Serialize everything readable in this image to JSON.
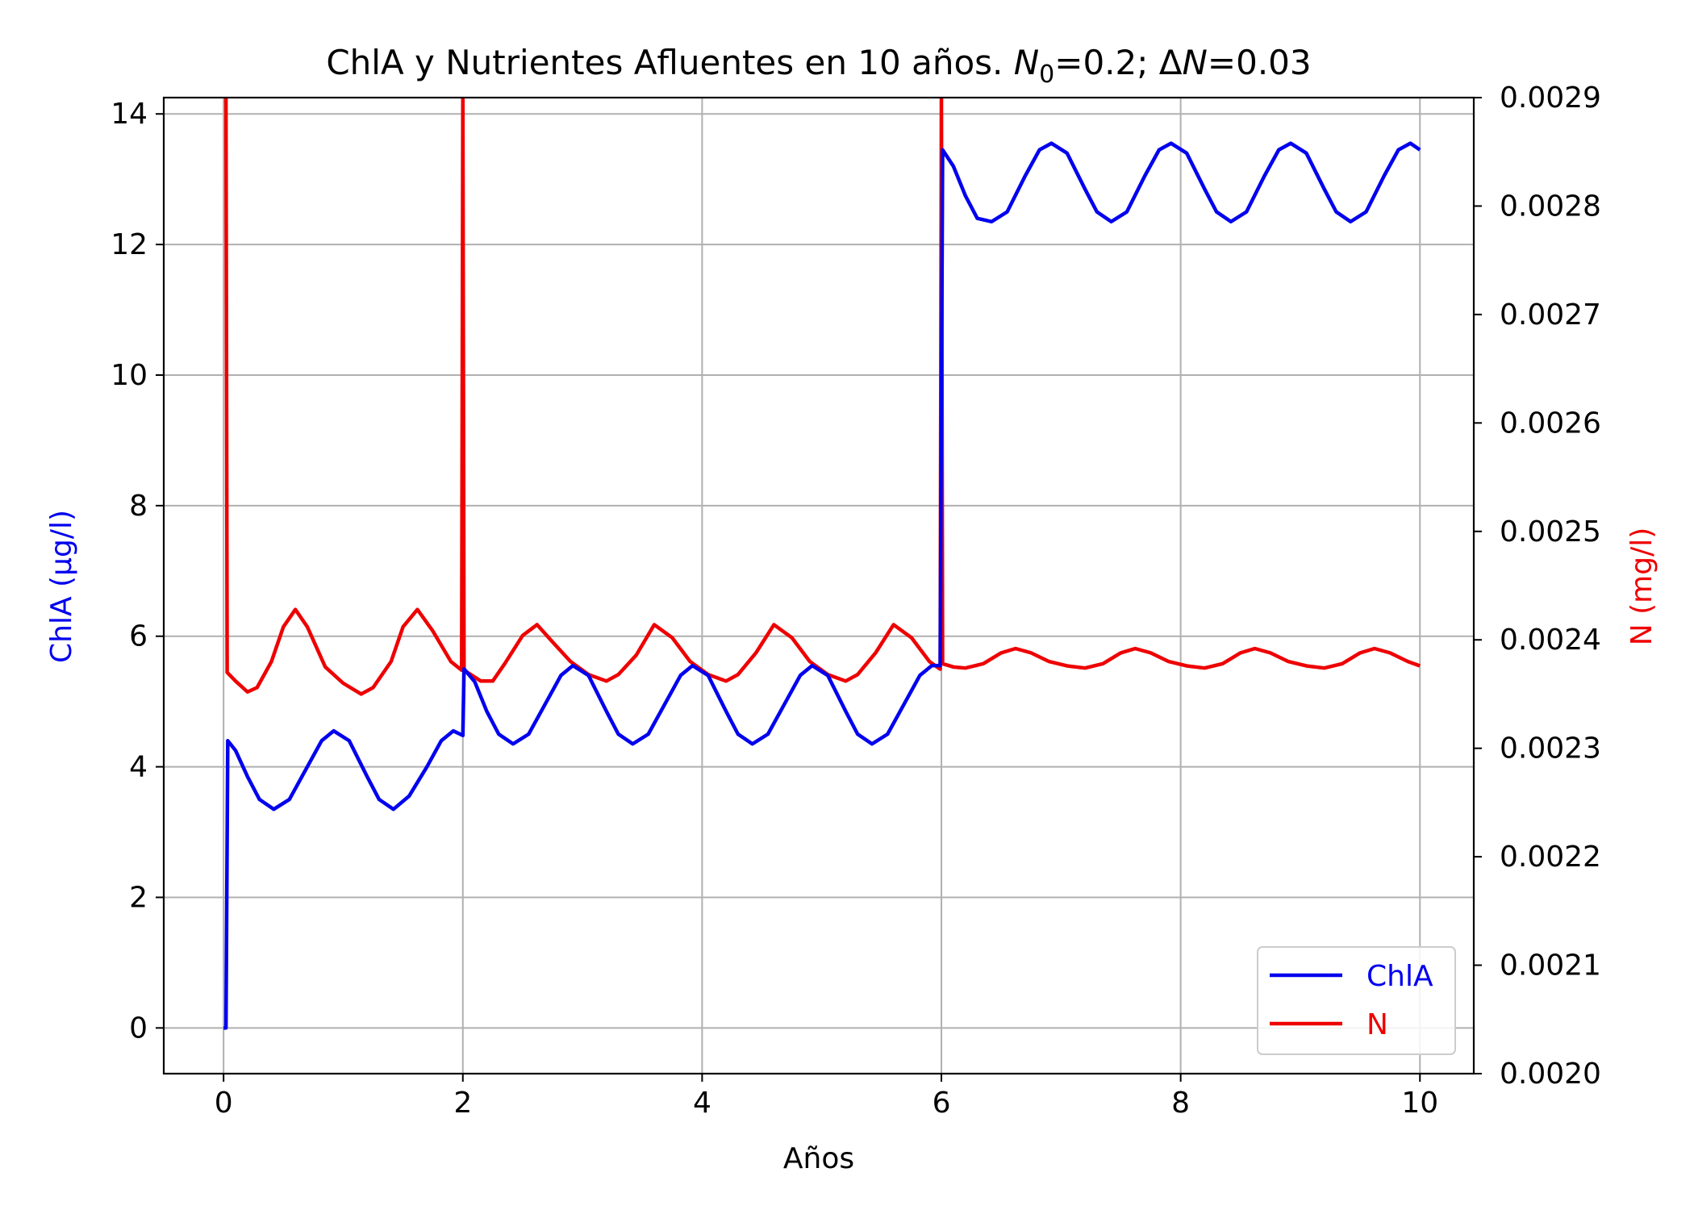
{
  "chart_data": {
    "type": "line",
    "title": {
      "prefix": "ChlA y Nutrientes Afluentes en 10 años. ",
      "n_symbol": "N",
      "n_sub": "0",
      "n_value": "=0.2; Δ",
      "dn_symbol": "N",
      "dn_value": "=0.03"
    },
    "xlabel": "Años",
    "ylabel_left": "ChlA (μg/l)",
    "ylabel_right": "N (mg/l)",
    "xlim": [
      -0.5,
      10.45
    ],
    "ylim_left": [
      -0.7,
      14.25
    ],
    "ylim_right": [
      0.002,
      0.0029
    ],
    "x_ticks": [
      "0",
      "2",
      "4",
      "6",
      "8",
      "10"
    ],
    "y_left_ticks": [
      "0",
      "2",
      "4",
      "6",
      "8",
      "10",
      "12",
      "14"
    ],
    "y_right_ticks": [
      "0.0020",
      "0.0021",
      "0.0022",
      "0.0023",
      "0.0024",
      "0.0025",
      "0.0026",
      "0.0027",
      "0.0028",
      "0.0029"
    ],
    "grid": true,
    "legend_position": "lower-right",
    "series": [
      {
        "name": "ChlA",
        "axis": "left",
        "color": "#0000ee",
        "points": [
          [
            0,
            0
          ],
          [
            0.02,
            0
          ],
          [
            0.035,
            4.4
          ],
          [
            0.1,
            4.25
          ],
          [
            0.2,
            3.85
          ],
          [
            0.3,
            3.5
          ],
          [
            0.42,
            3.35
          ],
          [
            0.55,
            3.5
          ],
          [
            0.7,
            4.0
          ],
          [
            0.82,
            4.4
          ],
          [
            0.92,
            4.55
          ],
          [
            1.05,
            4.4
          ],
          [
            1.2,
            3.85
          ],
          [
            1.3,
            3.5
          ],
          [
            1.42,
            3.35
          ],
          [
            1.55,
            3.55
          ],
          [
            1.7,
            4.0
          ],
          [
            1.82,
            4.4
          ],
          [
            1.92,
            4.55
          ],
          [
            2.0,
            4.48
          ],
          [
            2.01,
            5.5
          ],
          [
            2.1,
            5.3
          ],
          [
            2.2,
            4.85
          ],
          [
            2.3,
            4.5
          ],
          [
            2.42,
            4.35
          ],
          [
            2.55,
            4.5
          ],
          [
            2.7,
            5.0
          ],
          [
            2.82,
            5.4
          ],
          [
            2.92,
            5.55
          ],
          [
            3.05,
            5.4
          ],
          [
            3.2,
            4.85
          ],
          [
            3.3,
            4.5
          ],
          [
            3.42,
            4.35
          ],
          [
            3.55,
            4.5
          ],
          [
            3.7,
            5.0
          ],
          [
            3.82,
            5.4
          ],
          [
            3.92,
            5.55
          ],
          [
            4.05,
            5.4
          ],
          [
            4.2,
            4.85
          ],
          [
            4.3,
            4.5
          ],
          [
            4.42,
            4.35
          ],
          [
            4.55,
            4.5
          ],
          [
            4.7,
            5.0
          ],
          [
            4.82,
            5.4
          ],
          [
            4.92,
            5.55
          ],
          [
            5.05,
            5.4
          ],
          [
            5.2,
            4.85
          ],
          [
            5.3,
            4.5
          ],
          [
            5.42,
            4.35
          ],
          [
            5.55,
            4.5
          ],
          [
            5.7,
            5.0
          ],
          [
            5.82,
            5.4
          ],
          [
            5.92,
            5.55
          ],
          [
            5.99,
            5.55
          ],
          [
            6.01,
            13.45
          ],
          [
            6.1,
            13.2
          ],
          [
            6.2,
            12.75
          ],
          [
            6.3,
            12.4
          ],
          [
            6.42,
            12.35
          ],
          [
            6.55,
            12.5
          ],
          [
            6.7,
            13.05
          ],
          [
            6.82,
            13.45
          ],
          [
            6.92,
            13.55
          ],
          [
            7.05,
            13.4
          ],
          [
            7.2,
            12.85
          ],
          [
            7.3,
            12.5
          ],
          [
            7.42,
            12.35
          ],
          [
            7.55,
            12.5
          ],
          [
            7.7,
            13.05
          ],
          [
            7.82,
            13.45
          ],
          [
            7.92,
            13.55
          ],
          [
            8.05,
            13.4
          ],
          [
            8.2,
            12.85
          ],
          [
            8.3,
            12.5
          ],
          [
            8.42,
            12.35
          ],
          [
            8.55,
            12.5
          ],
          [
            8.7,
            13.05
          ],
          [
            8.82,
            13.45
          ],
          [
            8.92,
            13.55
          ],
          [
            9.05,
            13.4
          ],
          [
            9.2,
            12.85
          ],
          [
            9.3,
            12.5
          ],
          [
            9.42,
            12.35
          ],
          [
            9.55,
            12.5
          ],
          [
            9.7,
            13.05
          ],
          [
            9.82,
            13.45
          ],
          [
            9.92,
            13.55
          ],
          [
            10.0,
            13.45
          ]
        ]
      },
      {
        "name": "N",
        "axis": "right",
        "color": "#ee0000",
        "points": [
          [
            0.02,
            0.0029
          ],
          [
            0.03,
            0.00237
          ],
          [
            0.1,
            0.002362
          ],
          [
            0.2,
            0.002352
          ],
          [
            0.28,
            0.002356
          ],
          [
            0.4,
            0.00238
          ],
          [
            0.5,
            0.002412
          ],
          [
            0.6,
            0.002428
          ],
          [
            0.7,
            0.002412
          ],
          [
            0.85,
            0.002375
          ],
          [
            1.0,
            0.00236
          ],
          [
            1.15,
            0.00235
          ],
          [
            1.25,
            0.002356
          ],
          [
            1.4,
            0.00238
          ],
          [
            1.5,
            0.002412
          ],
          [
            1.62,
            0.002428
          ],
          [
            1.75,
            0.002408
          ],
          [
            1.9,
            0.00238
          ],
          [
            1.99,
            0.002372
          ],
          [
            2.0,
            0.0029
          ],
          [
            2.01,
            0.002372
          ],
          [
            2.15,
            0.002362
          ],
          [
            2.25,
            0.002362
          ],
          [
            2.35,
            0.002378
          ],
          [
            2.5,
            0.002404
          ],
          [
            2.62,
            0.002414
          ],
          [
            2.75,
            0.002398
          ],
          [
            2.9,
            0.00238
          ],
          [
            3.05,
            0.002368
          ],
          [
            3.2,
            0.002362
          ],
          [
            3.3,
            0.002368
          ],
          [
            3.45,
            0.002386
          ],
          [
            3.6,
            0.002414
          ],
          [
            3.75,
            0.002402
          ],
          [
            3.9,
            0.00238
          ],
          [
            4.05,
            0.002368
          ],
          [
            4.2,
            0.002362
          ],
          [
            4.3,
            0.002368
          ],
          [
            4.45,
            0.002388
          ],
          [
            4.6,
            0.002414
          ],
          [
            4.75,
            0.002402
          ],
          [
            4.9,
            0.00238
          ],
          [
            5.05,
            0.002368
          ],
          [
            5.2,
            0.002362
          ],
          [
            5.3,
            0.002368
          ],
          [
            5.45,
            0.002388
          ],
          [
            5.6,
            0.002414
          ],
          [
            5.75,
            0.002402
          ],
          [
            5.9,
            0.00238
          ],
          [
            5.99,
            0.002373
          ],
          [
            6.0,
            0.0029
          ],
          [
            6.01,
            0.002378
          ],
          [
            6.1,
            0.002375
          ],
          [
            6.2,
            0.002374
          ],
          [
            6.35,
            0.002378
          ],
          [
            6.5,
            0.002388
          ],
          [
            6.62,
            0.002392
          ],
          [
            6.75,
            0.002388
          ],
          [
            6.9,
            0.00238
          ],
          [
            7.05,
            0.002376
          ],
          [
            7.2,
            0.002374
          ],
          [
            7.35,
            0.002378
          ],
          [
            7.5,
            0.002388
          ],
          [
            7.62,
            0.002392
          ],
          [
            7.75,
            0.002388
          ],
          [
            7.9,
            0.00238
          ],
          [
            8.05,
            0.002376
          ],
          [
            8.2,
            0.002374
          ],
          [
            8.35,
            0.002378
          ],
          [
            8.5,
            0.002388
          ],
          [
            8.62,
            0.002392
          ],
          [
            8.75,
            0.002388
          ],
          [
            8.9,
            0.00238
          ],
          [
            9.05,
            0.002376
          ],
          [
            9.2,
            0.002374
          ],
          [
            9.35,
            0.002378
          ],
          [
            9.5,
            0.002388
          ],
          [
            9.62,
            0.002392
          ],
          [
            9.75,
            0.002388
          ],
          [
            9.9,
            0.00238
          ],
          [
            10.0,
            0.002376
          ]
        ]
      }
    ]
  }
}
